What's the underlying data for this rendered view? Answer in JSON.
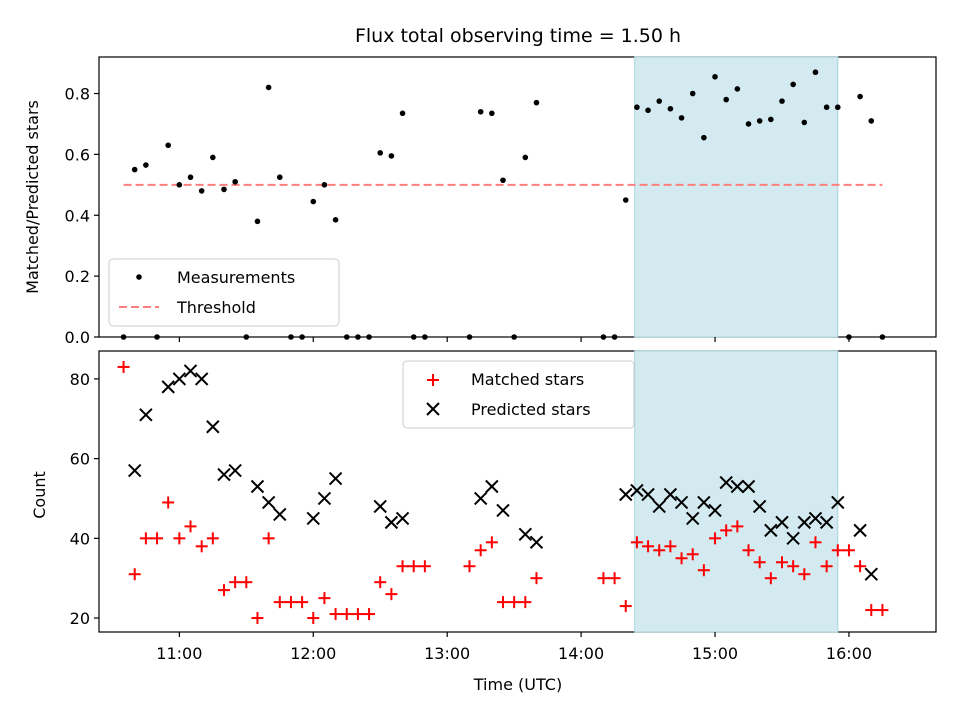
{
  "chart_data": [
    {
      "type": "scatter",
      "title": "Flux total observing time = 1.50 h",
      "xlabel": "",
      "ylabel": "Matched/Predicted stars",
      "xlim": [
        "10:24",
        "16:39"
      ],
      "ylim": [
        0,
        0.92
      ],
      "yticks": [
        "0.0",
        "0.2",
        "0.4",
        "0.6",
        "0.8"
      ],
      "yticks_values": [
        0,
        0.2,
        0.4,
        0.6,
        0.8
      ],
      "grid": false,
      "legend_position": "lower-left",
      "highlight_span": {
        "start": "14:24",
        "end": "15:55",
        "color": "#d3eaf0"
      },
      "series": [
        {
          "name": "Measurements",
          "marker": "dot",
          "color": "#000000",
          "points": [
            {
              "t": "10:35",
              "y": 0.0
            },
            {
              "t": "10:40",
              "y": 0.55
            },
            {
              "t": "10:45",
              "y": 0.565
            },
            {
              "t": "10:50",
              "y": 0.0
            },
            {
              "t": "10:55",
              "y": 0.63
            },
            {
              "t": "11:00",
              "y": 0.5
            },
            {
              "t": "11:05",
              "y": 0.525
            },
            {
              "t": "11:10",
              "y": 0.48
            },
            {
              "t": "11:15",
              "y": 0.59
            },
            {
              "t": "11:20",
              "y": 0.485
            },
            {
              "t": "11:25",
              "y": 0.51
            },
            {
              "t": "11:30",
              "y": 0.0
            },
            {
              "t": "11:35",
              "y": 0.38
            },
            {
              "t": "11:40",
              "y": 0.82
            },
            {
              "t": "11:45",
              "y": 0.525
            },
            {
              "t": "11:50",
              "y": 0.0
            },
            {
              "t": "11:55",
              "y": 0.0
            },
            {
              "t": "12:00",
              "y": 0.445
            },
            {
              "t": "12:05",
              "y": 0.5
            },
            {
              "t": "12:10",
              "y": 0.385
            },
            {
              "t": "12:15",
              "y": 0.0
            },
            {
              "t": "12:20",
              "y": 0.0
            },
            {
              "t": "12:25",
              "y": 0.0
            },
            {
              "t": "12:30",
              "y": 0.605
            },
            {
              "t": "12:35",
              "y": 0.595
            },
            {
              "t": "12:40",
              "y": 0.735
            },
            {
              "t": "12:45",
              "y": 0.0
            },
            {
              "t": "12:50",
              "y": 0.0
            },
            {
              "t": "13:10",
              "y": 0.0
            },
            {
              "t": "13:15",
              "y": 0.74
            },
            {
              "t": "13:20",
              "y": 0.735
            },
            {
              "t": "13:25",
              "y": 0.515
            },
            {
              "t": "13:30",
              "y": 0.0
            },
            {
              "t": "13:35",
              "y": 0.59
            },
            {
              "t": "13:40",
              "y": 0.77
            },
            {
              "t": "14:10",
              "y": 0.0
            },
            {
              "t": "14:15",
              "y": 0.0
            },
            {
              "t": "14:20",
              "y": 0.45
            },
            {
              "t": "14:25",
              "y": 0.755
            },
            {
              "t": "14:30",
              "y": 0.745
            },
            {
              "t": "14:35",
              "y": 0.775
            },
            {
              "t": "14:40",
              "y": 0.75
            },
            {
              "t": "14:45",
              "y": 0.72
            },
            {
              "t": "14:50",
              "y": 0.8
            },
            {
              "t": "14:55",
              "y": 0.655
            },
            {
              "t": "15:00",
              "y": 0.855
            },
            {
              "t": "15:05",
              "y": 0.78
            },
            {
              "t": "15:10",
              "y": 0.815
            },
            {
              "t": "15:15",
              "y": 0.7
            },
            {
              "t": "15:20",
              "y": 0.71
            },
            {
              "t": "15:25",
              "y": 0.715
            },
            {
              "t": "15:30",
              "y": 0.775
            },
            {
              "t": "15:35",
              "y": 0.83
            },
            {
              "t": "15:40",
              "y": 0.705
            },
            {
              "t": "15:45",
              "y": 0.87
            },
            {
              "t": "15:50",
              "y": 0.755
            },
            {
              "t": "15:55",
              "y": 0.755
            },
            {
              "t": "16:00",
              "y": 0.0
            },
            {
              "t": "16:05",
              "y": 0.79
            },
            {
              "t": "16:10",
              "y": 0.71
            },
            {
              "t": "16:15",
              "y": 0.0
            }
          ]
        },
        {
          "name": "Threshold",
          "marker": "dashed-line",
          "color": "#ff7f7f",
          "line": {
            "t_start": "10:35",
            "t_end": "16:15",
            "y": 0.5
          }
        }
      ]
    },
    {
      "type": "scatter",
      "title": "",
      "xlabel": "Time (UTC)",
      "ylabel": "Count",
      "xlim": [
        "10:24",
        "16:39"
      ],
      "ylim": [
        16.5,
        87
      ],
      "xticks": [
        "11:00",
        "12:00",
        "13:00",
        "14:00",
        "15:00",
        "16:00"
      ],
      "yticks": [
        "20",
        "40",
        "60",
        "80"
      ],
      "yticks_values": [
        20,
        40,
        60,
        80
      ],
      "grid": false,
      "legend_position": "upper-center",
      "highlight_span": {
        "start": "14:24",
        "end": "15:55",
        "color": "#d3eaf0"
      },
      "series": [
        {
          "name": "Matched stars",
          "marker": "plus",
          "color": "#ff0000",
          "points": [
            {
              "t": "10:35",
              "y": 83
            },
            {
              "t": "10:40",
              "y": 31
            },
            {
              "t": "10:45",
              "y": 40
            },
            {
              "t": "10:50",
              "y": 40
            },
            {
              "t": "10:55",
              "y": 49
            },
            {
              "t": "11:00",
              "y": 40
            },
            {
              "t": "11:05",
              "y": 43
            },
            {
              "t": "11:10",
              "y": 38
            },
            {
              "t": "11:15",
              "y": 40
            },
            {
              "t": "11:20",
              "y": 27
            },
            {
              "t": "11:25",
              "y": 29
            },
            {
              "t": "11:30",
              "y": 29
            },
            {
              "t": "11:35",
              "y": 20
            },
            {
              "t": "11:40",
              "y": 40
            },
            {
              "t": "11:45",
              "y": 24
            },
            {
              "t": "11:50",
              "y": 24
            },
            {
              "t": "11:55",
              "y": 24
            },
            {
              "t": "12:00",
              "y": 20
            },
            {
              "t": "12:05",
              "y": 25
            },
            {
              "t": "12:10",
              "y": 21
            },
            {
              "t": "12:15",
              "y": 21
            },
            {
              "t": "12:20",
              "y": 21
            },
            {
              "t": "12:25",
              "y": 21
            },
            {
              "t": "12:30",
              "y": 29
            },
            {
              "t": "12:35",
              "y": 26
            },
            {
              "t": "12:40",
              "y": 33
            },
            {
              "t": "12:45",
              "y": 33
            },
            {
              "t": "12:50",
              "y": 33
            },
            {
              "t": "13:10",
              "y": 33
            },
            {
              "t": "13:15",
              "y": 37
            },
            {
              "t": "13:20",
              "y": 39
            },
            {
              "t": "13:25",
              "y": 24
            },
            {
              "t": "13:30",
              "y": 24
            },
            {
              "t": "13:35",
              "y": 24
            },
            {
              "t": "13:40",
              "y": 30
            },
            {
              "t": "14:10",
              "y": 30
            },
            {
              "t": "14:15",
              "y": 30
            },
            {
              "t": "14:20",
              "y": 23
            },
            {
              "t": "14:25",
              "y": 39
            },
            {
              "t": "14:30",
              "y": 38
            },
            {
              "t": "14:35",
              "y": 37
            },
            {
              "t": "14:40",
              "y": 38
            },
            {
              "t": "14:45",
              "y": 35
            },
            {
              "t": "14:50",
              "y": 36
            },
            {
              "t": "14:55",
              "y": 32
            },
            {
              "t": "15:00",
              "y": 40
            },
            {
              "t": "15:05",
              "y": 42
            },
            {
              "t": "15:10",
              "y": 43
            },
            {
              "t": "15:15",
              "y": 37
            },
            {
              "t": "15:20",
              "y": 34
            },
            {
              "t": "15:25",
              "y": 30
            },
            {
              "t": "15:30",
              "y": 34
            },
            {
              "t": "15:35",
              "y": 33
            },
            {
              "t": "15:40",
              "y": 31
            },
            {
              "t": "15:45",
              "y": 39
            },
            {
              "t": "15:50",
              "y": 33
            },
            {
              "t": "15:55",
              "y": 37
            },
            {
              "t": "16:00",
              "y": 37
            },
            {
              "t": "16:05",
              "y": 33
            },
            {
              "t": "16:10",
              "y": 22
            },
            {
              "t": "16:15",
              "y": 22
            }
          ]
        },
        {
          "name": "Predicted stars",
          "marker": "x",
          "color": "#000000",
          "points": [
            {
              "t": "10:40",
              "y": 57
            },
            {
              "t": "10:45",
              "y": 71
            },
            {
              "t": "10:55",
              "y": 78
            },
            {
              "t": "11:00",
              "y": 80
            },
            {
              "t": "11:05",
              "y": 82
            },
            {
              "t": "11:10",
              "y": 80
            },
            {
              "t": "11:15",
              "y": 68
            },
            {
              "t": "11:20",
              "y": 56
            },
            {
              "t": "11:25",
              "y": 57
            },
            {
              "t": "11:35",
              "y": 53
            },
            {
              "t": "11:40",
              "y": 49
            },
            {
              "t": "11:45",
              "y": 46
            },
            {
              "t": "12:00",
              "y": 45
            },
            {
              "t": "12:05",
              "y": 50
            },
            {
              "t": "12:10",
              "y": 55
            },
            {
              "t": "12:30",
              "y": 48
            },
            {
              "t": "12:35",
              "y": 44
            },
            {
              "t": "12:40",
              "y": 45
            },
            {
              "t": "13:15",
              "y": 50
            },
            {
              "t": "13:20",
              "y": 53
            },
            {
              "t": "13:25",
              "y": 47
            },
            {
              "t": "13:35",
              "y": 41
            },
            {
              "t": "13:40",
              "y": 39
            },
            {
              "t": "14:20",
              "y": 51
            },
            {
              "t": "14:25",
              "y": 52
            },
            {
              "t": "14:30",
              "y": 51
            },
            {
              "t": "14:35",
              "y": 48
            },
            {
              "t": "14:40",
              "y": 51
            },
            {
              "t": "14:45",
              "y": 49
            },
            {
              "t": "14:50",
              "y": 45
            },
            {
              "t": "14:55",
              "y": 49
            },
            {
              "t": "15:00",
              "y": 47
            },
            {
              "t": "15:05",
              "y": 54
            },
            {
              "t": "15:10",
              "y": 53
            },
            {
              "t": "15:15",
              "y": 53
            },
            {
              "t": "15:20",
              "y": 48
            },
            {
              "t": "15:25",
              "y": 42
            },
            {
              "t": "15:30",
              "y": 44
            },
            {
              "t": "15:35",
              "y": 40
            },
            {
              "t": "15:40",
              "y": 44
            },
            {
              "t": "15:45",
              "y": 45
            },
            {
              "t": "15:50",
              "y": 44
            },
            {
              "t": "15:55",
              "y": 49
            },
            {
              "t": "16:05",
              "y": 42
            },
            {
              "t": "16:10",
              "y": 31
            }
          ]
        }
      ]
    }
  ]
}
